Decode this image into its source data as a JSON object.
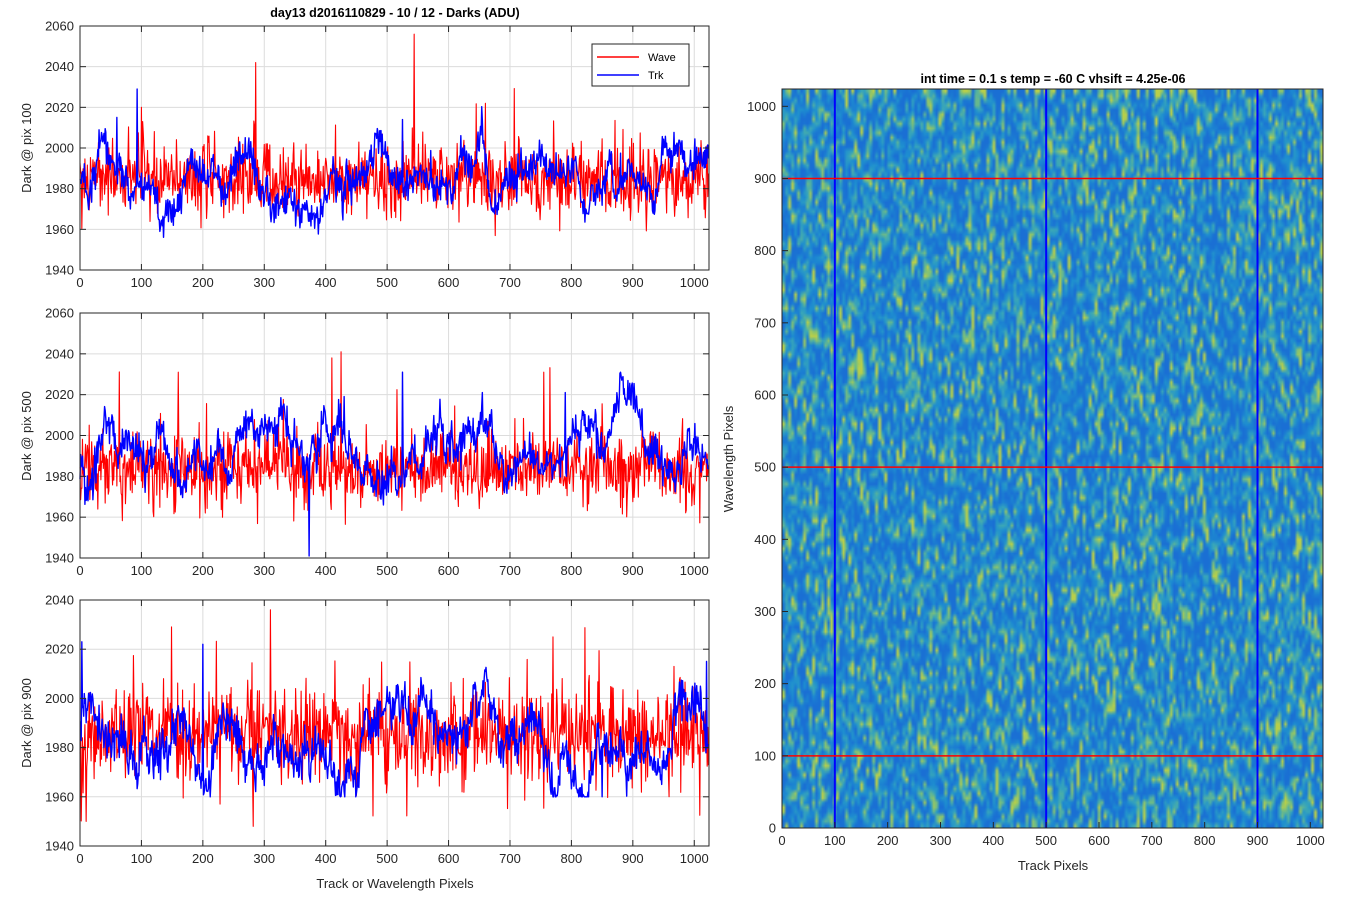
{
  "chart_data": [
    {
      "type": "line",
      "title": "day13 d2016110829 - 10 / 12 - Darks (ADU)",
      "xlabel": "",
      "ylabel": "Dark @ pix 100",
      "xlim": [
        0,
        1024
      ],
      "ylim": [
        1940,
        2060
      ],
      "xticks": [
        0,
        100,
        200,
        300,
        400,
        500,
        600,
        700,
        800,
        900,
        1000
      ],
      "yticks": [
        1940,
        1960,
        1980,
        2000,
        2020,
        2040,
        2060
      ],
      "grid": true,
      "legend": {
        "position": "top-right",
        "entries": [
          "Wave",
          "Trk"
        ]
      },
      "series": [
        {
          "name": "Wave",
          "color": "#ff0000",
          "mean": 1984,
          "noise": 9,
          "spike_rate": 0.06,
          "spike_amp": 30,
          "min": 1953,
          "max": 2056,
          "peaks": [
            [
              286,
              2042
            ],
            [
              544,
              2056
            ],
            [
              100,
              2020
            ],
            [
              660,
              2022
            ]
          ]
        },
        {
          "name": "Trk",
          "color": "#0000ff",
          "mean": 1983,
          "noise": 4,
          "drift": 10,
          "min": 1952,
          "max": 2029,
          "peaks": [
            [
              93,
              2029
            ],
            [
              60,
              2015
            ],
            [
              525,
              2014
            ]
          ]
        }
      ]
    },
    {
      "type": "line",
      "title": "",
      "xlabel": "",
      "ylabel": "Dark @ pix 500",
      "xlim": [
        0,
        1024
      ],
      "ylim": [
        1940,
        2060
      ],
      "xticks": [
        0,
        100,
        200,
        300,
        400,
        500,
        600,
        700,
        800,
        900,
        1000
      ],
      "yticks": [
        1940,
        1960,
        1980,
        2000,
        2020,
        2040,
        2060
      ],
      "grid": true,
      "series": [
        {
          "name": "Wave",
          "color": "#ff0000",
          "mean": 1983,
          "noise": 9,
          "spike_rate": 0.06,
          "spike_amp": 30,
          "min": 1945,
          "max": 2041,
          "peaks": [
            [
              425,
              2041
            ],
            [
              410,
              2038
            ],
            [
              755,
              2031
            ],
            [
              160,
              2031
            ]
          ]
        },
        {
          "name": "Trk",
          "color": "#0000ff",
          "mean": 1986,
          "noise": 4,
          "drift": 12,
          "min": 1941,
          "max": 2031,
          "peaks": [
            [
              525,
              2031
            ],
            [
              655,
              2021
            ],
            [
              790,
              2021
            ],
            [
              373,
              1941
            ]
          ]
        }
      ]
    },
    {
      "type": "line",
      "title": "",
      "xlabel": "Track or Wavelength Pixels",
      "ylabel": "Dark @ pix 900",
      "xlim": [
        0,
        1024
      ],
      "ylim": [
        1940,
        2040
      ],
      "xticks": [
        0,
        100,
        200,
        300,
        400,
        500,
        600,
        700,
        800,
        900,
        1000
      ],
      "yticks": [
        1940,
        1960,
        1980,
        2000,
        2020,
        2040
      ],
      "grid": true,
      "series": [
        {
          "name": "Wave",
          "color": "#ff0000",
          "mean": 1985,
          "noise": 10,
          "spike_rate": 0.06,
          "spike_amp": 30,
          "min": 1948,
          "max": 2036,
          "peaks": [
            [
              282,
              1948
            ],
            [
              10,
              1950
            ],
            [
              310,
              2036
            ],
            [
              770,
              2025
            ]
          ]
        },
        {
          "name": "Trk",
          "color": "#0000ff",
          "mean": 1987,
          "noise": 4,
          "drift": 12,
          "min": 1960,
          "max": 2023,
          "peaks": [
            [
              3,
              2023
            ],
            [
              200,
              2022
            ],
            [
              1020,
              2015
            ],
            [
              850,
              1960
            ]
          ]
        }
      ]
    },
    {
      "type": "heatmap",
      "title": "int time = 0.1 s   temp = -60 C   vhsift = 4.25e-06",
      "xlabel": "Track Pixels",
      "ylabel": "Wavelength Pixels",
      "xlim": [
        0,
        1024
      ],
      "ylim": [
        0,
        1024
      ],
      "xticks": [
        0,
        100,
        200,
        300,
        400,
        500,
        600,
        700,
        800,
        900,
        1000
      ],
      "yticks": [
        0,
        100,
        200,
        300,
        400,
        500,
        600,
        700,
        800,
        900,
        1000
      ],
      "grid": false,
      "colormap": [
        "#1a6fd4",
        "#1e8fd0",
        "#3aa7b8",
        "#7cc07a",
        "#b8cf4a"
      ],
      "marker_lines": {
        "vertical": {
          "x": [
            100,
            500,
            900
          ],
          "color": "#0000ff"
        },
        "horizontal": {
          "y": [
            100,
            500,
            900
          ],
          "color": "#ff0000"
        }
      }
    }
  ]
}
